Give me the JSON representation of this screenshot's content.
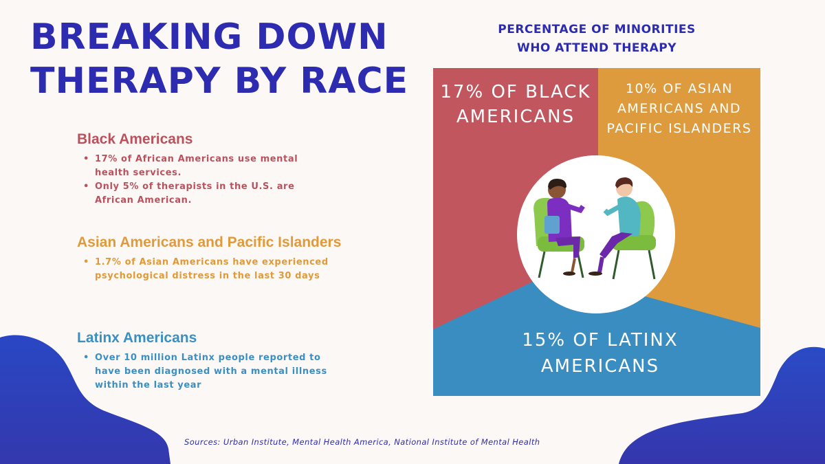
{
  "title": {
    "line1": "BREAKING DOWN",
    "line2": "THERAPY BY RACE"
  },
  "sections": [
    {
      "heading": "Black Americans",
      "color": "#b9525d",
      "bullets": [
        "17% of African Americans use mental health services.",
        "Only 5% of therapists in the U.S. are African American."
      ]
    },
    {
      "heading": "Asian Americans and Pacific Islanders",
      "color": "#e09a3a",
      "bullets": [
        "1.7% of Asian Americans have experienced psychological distress in the last 30 days"
      ]
    },
    {
      "heading": "Latinx Americans",
      "color": "#3a8fc3",
      "bullets": [
        "Over 10 million Latinx people reported to have been diagnosed with a mental illness within the last year"
      ]
    }
  ],
  "chart": {
    "title_line1": "PERCENTAGE OF MINORITIES",
    "title_line2": "WHO ATTEND THERAPY",
    "segments": [
      {
        "label_line1": "17% OF BLACK",
        "label_line2": "AMERICANS",
        "value": 17,
        "color": "#c2565f"
      },
      {
        "label_line1": "10% OF ASIAN",
        "label_line2": "AMERICANS AND",
        "label_line3": "PACIFIC ISLANDERS",
        "value": 10,
        "color": "#dd9b3e"
      },
      {
        "label_line1": "15% OF LATINX",
        "label_line2": "AMERICANS",
        "value": 15,
        "color": "#3a8dc0"
      }
    ]
  },
  "illustration": "therapy-session-illustration",
  "colors": {
    "title": "#2d2cb0",
    "background": "#fcf8f6",
    "blob": "#2f3fb8"
  },
  "sources": "Sources: Urban Institute, Mental Health America, National Institute of Mental Health"
}
